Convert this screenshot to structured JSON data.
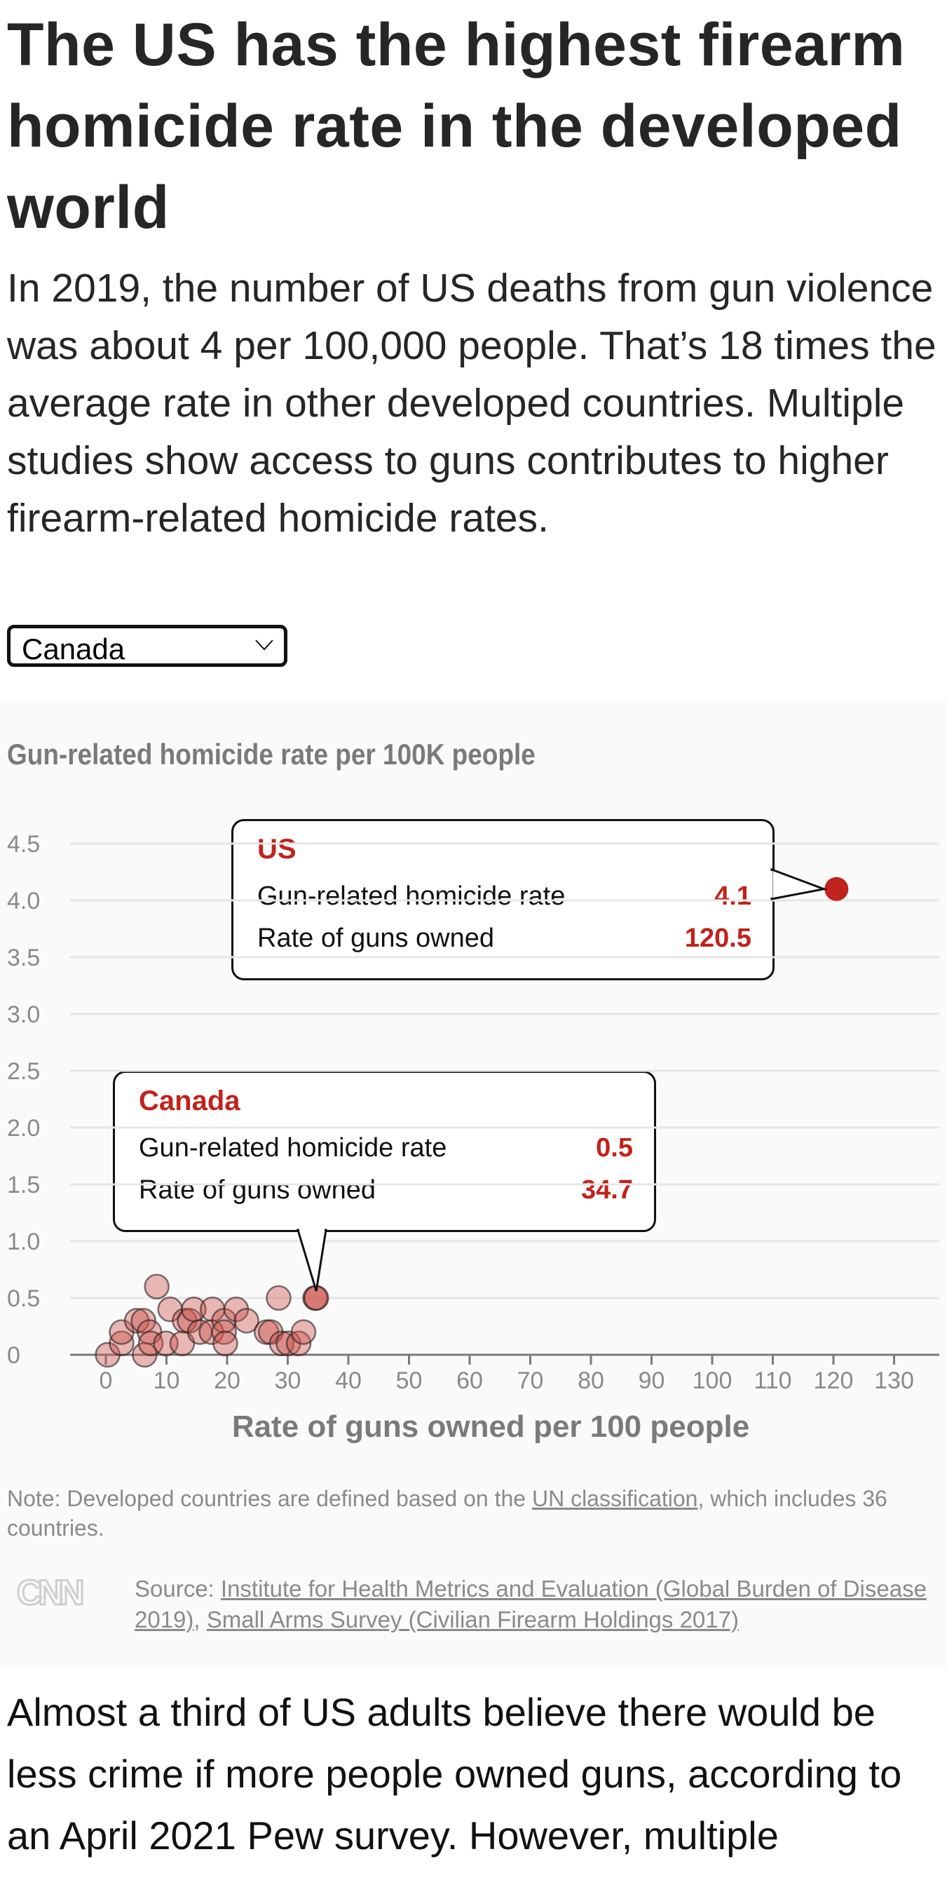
{
  "title": "The US has the highest firearm homicide rate in the developed world",
  "subtitle": "In 2019, the number of US deaths from gun violence was about 4 per 100,000 people. That’s 18 times the average rate in other developed countries. Multiple studies show access to guns contributes to higher firearm-related homicide rates.",
  "dropdown": {
    "selected": "Canada"
  },
  "colors": {
    "accent": "#c0231c",
    "point_fill": "#e08a85",
    "axis": "#7a7a7a"
  },
  "chart_data": {
    "type": "scatter",
    "title": "Gun-related homicide rate per 100K people",
    "xlabel": "Rate of guns owned per 100 people",
    "ylabel": "Gun-related homicide rate per 100K people",
    "xlim": [
      0,
      130
    ],
    "ylim": [
      0,
      4.5
    ],
    "xticks": [
      "0",
      "10",
      "20",
      "30",
      "40",
      "50",
      "60",
      "70",
      "80",
      "90",
      "100",
      "110",
      "120",
      "130"
    ],
    "yticks": [
      "0",
      "0.5",
      "1.0",
      "1.5",
      "2.0",
      "2.5",
      "3.0",
      "3.5",
      "4.0",
      "4.5"
    ],
    "grid": true,
    "points": [
      [
        0.3,
        0.0
      ],
      [
        2.6,
        0.1
      ],
      [
        2.6,
        0.2
      ],
      [
        5.1,
        0.3
      ],
      [
        6.2,
        0.3
      ],
      [
        7.2,
        0.2
      ],
      [
        6.4,
        0.0
      ],
      [
        7.4,
        0.1
      ],
      [
        8.4,
        0.6
      ],
      [
        9.9,
        0.1
      ],
      [
        10.6,
        0.4
      ],
      [
        12.6,
        0.1
      ],
      [
        13.0,
        0.3
      ],
      [
        13.8,
        0.3
      ],
      [
        14.5,
        0.4
      ],
      [
        15.5,
        0.2
      ],
      [
        17.6,
        0.4
      ],
      [
        17.4,
        0.2
      ],
      [
        19.5,
        0.3
      ],
      [
        19.5,
        0.2
      ],
      [
        19.7,
        0.1
      ],
      [
        21.5,
        0.4
      ],
      [
        23.2,
        0.3
      ],
      [
        26.5,
        0.2
      ],
      [
        27.2,
        0.2
      ],
      [
        28.5,
        0.5
      ],
      [
        29.0,
        0.1
      ],
      [
        30.1,
        0.1
      ],
      [
        31.8,
        0.1
      ],
      [
        32.6,
        0.2
      ],
      [
        34.5,
        0.5
      ]
    ],
    "highlighted": [
      {
        "name": "US",
        "homicide_rate": 4.1,
        "guns_owned": 120.5
      },
      {
        "name": "Canada",
        "homicide_rate": 0.5,
        "guns_owned": 34.7
      }
    ],
    "tooltip_labels": {
      "rate": "Gun-related homicide rate",
      "guns": "Rate of guns owned"
    }
  },
  "tooltips": {
    "us": {
      "name": "US",
      "rate": "4.1",
      "guns": "120.5"
    },
    "canada": {
      "name": "Canada",
      "rate": "0.5",
      "guns": "34.7"
    }
  },
  "note": {
    "prefix": "Note: Developed countries are defined based on the ",
    "link": "UN classification",
    "suffix": ", which includes 36 countries."
  },
  "source": {
    "label": "Source: ",
    "link1": "Institute for Health Metrics and Evaluation (Global Burden of Disease 2019)",
    "sep": ", ",
    "link2": "Small Arms Survey (Civilian Firearm Holdings 2017)"
  },
  "logo": "CNN",
  "body": "Almost a third of US adults believe there would be less crime if more people owned guns, according to an April 2021 Pew survey. However, multiple"
}
